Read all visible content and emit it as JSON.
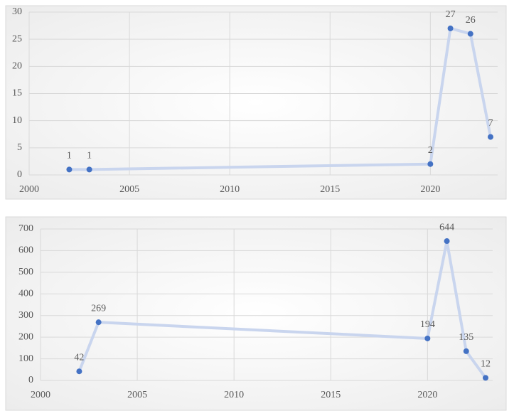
{
  "chart_data": [
    {
      "type": "line",
      "x": [
        2002,
        2003,
        2020,
        2021,
        2022,
        2023
      ],
      "values": [
        1,
        1,
        2,
        27,
        26,
        7
      ],
      "xlim": [
        2000,
        2023
      ],
      "xticks": [
        2000,
        2005,
        2010,
        2015,
        2020
      ],
      "ylim": [
        0,
        30
      ],
      "yticks": [
        0,
        5,
        10,
        15,
        20,
        25,
        30
      ],
      "color": "#4472c4",
      "line_color": "#c9d5ee",
      "grid": true
    },
    {
      "type": "line",
      "x": [
        2002,
        2003,
        2020,
        2021,
        2022,
        2023
      ],
      "values": [
        42,
        269,
        194,
        644,
        135,
        12
      ],
      "xlim": [
        2000,
        2023
      ],
      "xticks": [
        2000,
        2005,
        2010,
        2015,
        2020
      ],
      "ylim": [
        0,
        700
      ],
      "yticks": [
        0,
        100,
        200,
        300,
        400,
        500,
        600,
        700
      ],
      "color": "#4472c4",
      "line_color": "#c9d5ee",
      "grid": true
    }
  ]
}
